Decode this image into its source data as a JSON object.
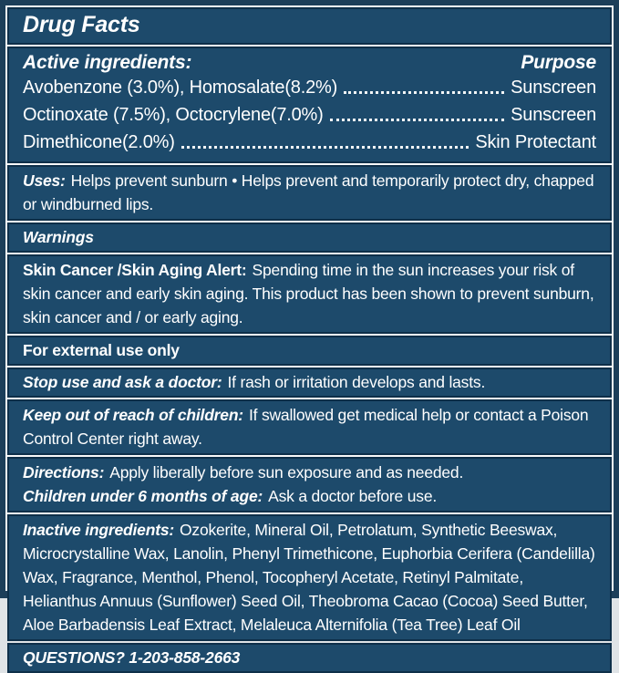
{
  "colors": {
    "frame_navy": "#1c3e59",
    "panel_blue": "#1d4a6b",
    "hairline_dark": "#0e2f49",
    "separator_white": "#f7f8f8",
    "text_white": "#ffffff"
  },
  "title": "Drug Facts",
  "active": {
    "heading": "Active ingredients:",
    "purpose_heading": "Purpose",
    "rows": [
      {
        "name": "Avobenzone (3.0%), Homosalate(8.2%)",
        "purpose": "Sunscreen"
      },
      {
        "name": "Octinoxate (7.5%), Octocrylene(7.0%)",
        "purpose": "Sunscreen"
      },
      {
        "name": "Dimethicone(2.0%)",
        "purpose": "Skin Protectant"
      }
    ]
  },
  "uses": {
    "label": "Uses:",
    "text": "Helps prevent sunburn • Helps prevent and temporarily protect dry, chapped or windburned lips."
  },
  "warnings": {
    "label": "Warnings"
  },
  "skin_alert": {
    "label": "Skin Cancer /Skin Aging Alert:",
    "text": "Spending time in the sun increases your risk of skin cancer and early skin aging. This product has been shown to prevent sunburn, skin cancer and / or early aging."
  },
  "external_use": {
    "label": "For external use only"
  },
  "stop_use": {
    "label": "Stop use and ask a doctor:",
    "text": "If rash or irritation develops and lasts."
  },
  "keep_out": {
    "label": "Keep out of reach of children:",
    "text": "If swallowed get medical help or contact a Poison Control Center right away."
  },
  "directions": {
    "label": "Directions:",
    "text": "Apply liberally before sun exposure and as needed."
  },
  "children": {
    "label": "Children under 6 months of age:",
    "text": "Ask a doctor before use."
  },
  "inactive": {
    "label": "Inactive ingredients:",
    "text": "Ozokerite, Mineral Oil, Petrolatum, Synthetic Beeswax, Microcrystalline Wax, Lanolin, Phenyl Trimethicone, Euphorbia Cerifera (Candelilla) Wax, Fragrance, Menthol, Phenol, Tocopheryl Acetate, Retinyl Palmitate, Helianthus Annuus (Sunflower) Seed Oil, Theobroma Cacao (Cocoa) Seed Butter, Aloe Barbadensis Leaf Extract, Melaleuca Alternifolia (Tea Tree) Leaf Oil"
  },
  "questions": {
    "label": "QUESTIONS? 1-203-858-2663"
  }
}
